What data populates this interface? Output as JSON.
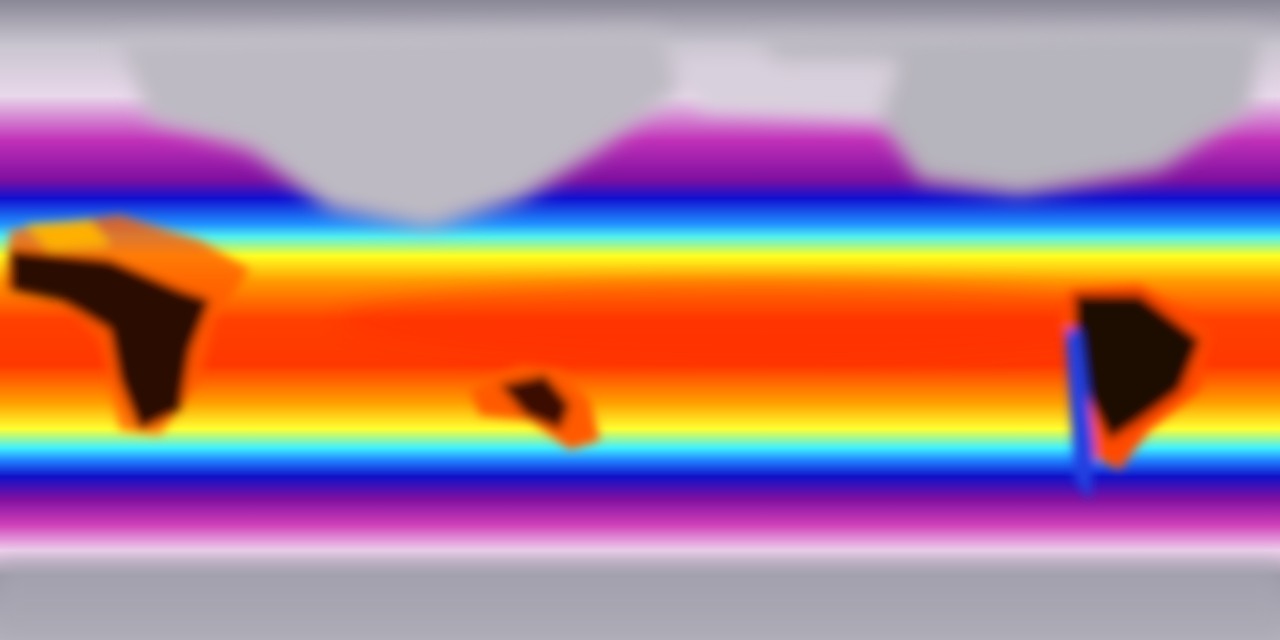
{
  "map": {
    "projection": "equirectangular",
    "variable": "temperature",
    "colormap": [
      "#8a8796",
      "#c9c5cf",
      "#f2e6f2",
      "#d040c0",
      "#9010a0",
      "#1010d0",
      "#2080ff",
      "#40f0ff",
      "#ffff20",
      "#ffa000",
      "#ff4000",
      "#e01800"
    ],
    "land_hot_color": "#1a0a08",
    "polar_land_color": "#b8b6be"
  }
}
